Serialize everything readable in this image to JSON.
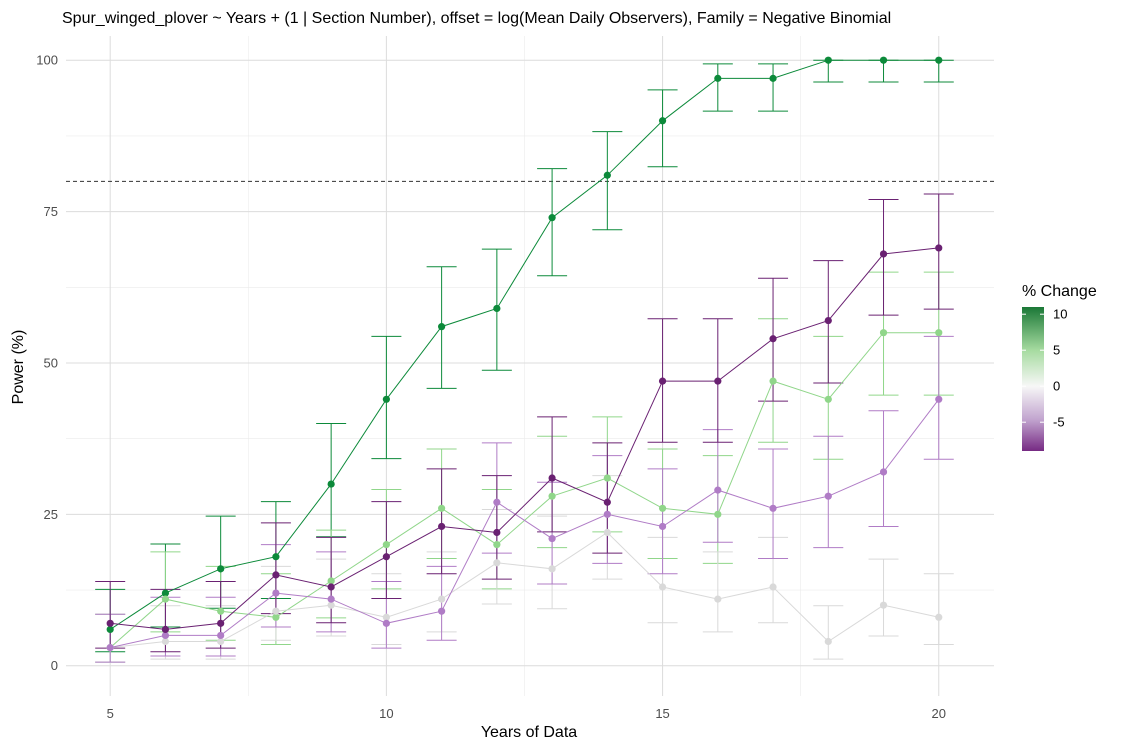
{
  "chart_data": {
    "type": "line",
    "title": "Spur_winged_plover ~ Years + (1 | Section Number), offset = log(Mean Daily Observers), Family = Negative Binomial",
    "xlabel": "Years of Data",
    "ylabel": "Power (%)",
    "xlim": [
      4.2,
      21.0
    ],
    "ylim": [
      -5,
      104
    ],
    "x_ticks": [
      5,
      10,
      15,
      20
    ],
    "y_ticks": [
      0,
      25,
      50,
      75,
      100
    ],
    "grid": true,
    "reference_line": {
      "y": 80,
      "style": "dashed"
    },
    "legend": {
      "title": "% Change",
      "placement": "right",
      "type": "colorbar",
      "range": [
        -9,
        11
      ],
      "ticks": [
        10,
        5,
        0,
        -5
      ],
      "colors": [
        "#762a83",
        "#c2a5cf",
        "#f7f7f7",
        "#a6dba0",
        "#1b7837"
      ]
    },
    "x": [
      5,
      6,
      7,
      8,
      9,
      10,
      11,
      12,
      13,
      14,
      15,
      16,
      17,
      18,
      19,
      20
    ],
    "series": [
      {
        "change": 10,
        "color": "#0c8a3a",
        "values": [
          6,
          12,
          16,
          18,
          30,
          44,
          56,
          59,
          74,
          81,
          90,
          97,
          97,
          100,
          100,
          100
        ],
        "lower": [
          2.3,
          6.4,
          9.5,
          11.1,
          21.3,
          34.2,
          45.8,
          48.8,
          64.4,
          72.0,
          82.4,
          91.6,
          91.6,
          96.4,
          96.4,
          96.4
        ],
        "upper": [
          12.6,
          20.1,
          24.7,
          27.1,
          40.0,
          54.4,
          65.9,
          68.8,
          82.1,
          88.2,
          95.1,
          99.4,
          99.4,
          100,
          100,
          100
        ]
      },
      {
        "change": 5,
        "color": "#90d68a",
        "values": [
          3,
          11,
          9,
          8,
          14,
          20,
          26,
          20,
          28,
          31,
          26,
          25,
          47,
          44,
          55,
          55
        ],
        "lower": [
          0.6,
          5.6,
          4.2,
          3.5,
          7.9,
          12.7,
          17.7,
          12.7,
          19.5,
          22.1,
          17.7,
          16.9,
          36.9,
          34.1,
          44.7,
          44.7
        ],
        "upper": [
          8.5,
          18.8,
          16.4,
          15.2,
          22.4,
          29.1,
          35.8,
          29.1,
          37.9,
          41.1,
          35.8,
          34.7,
          57.3,
          54.4,
          65.0,
          65.0
        ]
      },
      {
        "change": 0,
        "color": "#d9d9d9",
        "values": [
          3,
          4,
          4,
          9,
          10,
          8,
          11,
          17,
          16,
          22,
          13,
          11,
          13,
          4,
          10,
          8
        ],
        "lower": [
          0.6,
          1.1,
          1.1,
          4.2,
          4.9,
          3.5,
          5.6,
          10.2,
          9.4,
          14.3,
          7.1,
          5.6,
          7.1,
          1.1,
          4.9,
          3.5
        ],
        "upper": [
          8.5,
          9.9,
          9.9,
          16.4,
          17.6,
          15.2,
          18.8,
          25.8,
          24.7,
          31.4,
          21.2,
          18.8,
          21.2,
          9.9,
          17.6,
          15.2
        ]
      },
      {
        "change": -5,
        "color": "#b07cc6",
        "values": [
          3,
          5,
          5,
          12,
          11,
          7,
          9,
          27,
          21,
          25,
          23,
          29,
          26,
          28,
          32,
          44
        ],
        "lower": [
          0.6,
          1.6,
          1.6,
          6.4,
          5.6,
          2.9,
          4.2,
          18.6,
          13.5,
          16.9,
          15.2,
          20.4,
          17.7,
          19.5,
          23.0,
          34.1
        ],
        "upper": [
          8.5,
          11.3,
          11.3,
          20.0,
          18.8,
          13.9,
          16.4,
          36.8,
          30.3,
          34.7,
          32.5,
          39.0,
          35.8,
          37.9,
          42.1,
          54.4
        ]
      },
      {
        "change": -9,
        "color": "#6a2172",
        "values": [
          7,
          6,
          7,
          15,
          13,
          18,
          23,
          22,
          31,
          27,
          47,
          47,
          54,
          57,
          68,
          69
        ],
        "lower": [
          2.9,
          2.3,
          2.9,
          8.6,
          7.1,
          11.1,
          15.2,
          14.3,
          22.1,
          18.6,
          36.9,
          36.9,
          43.7,
          46.7,
          57.9,
          58.9
        ],
        "upper": [
          13.9,
          12.6,
          13.9,
          23.6,
          21.2,
          27.1,
          32.5,
          31.4,
          41.1,
          36.8,
          57.3,
          57.3,
          64.0,
          66.9,
          77.0,
          77.9
        ]
      }
    ]
  }
}
